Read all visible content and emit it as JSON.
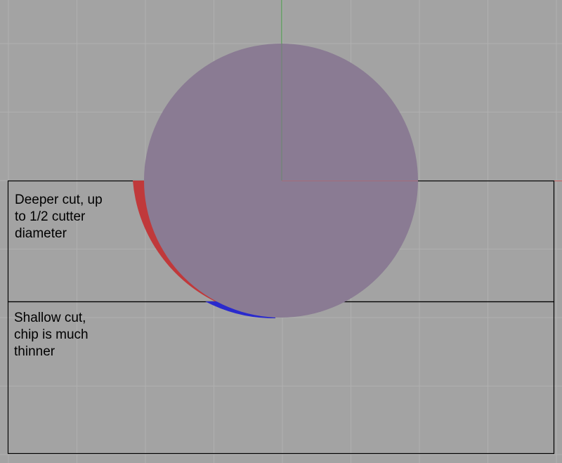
{
  "viewport": {
    "background": "#a3a3a3",
    "grid_color": "#b0b0b0",
    "y_axis_color": "#3f9a3f",
    "x_axis_color": "#c45c5c"
  },
  "cutter": {
    "color": "#8a7b93",
    "deep_cut_arc_color": "#c0393b",
    "shallow_cut_arc_color": "#2a2acd"
  },
  "regions": {
    "outline_color": "#000000"
  },
  "labels": {
    "deep_cut": "Deeper cut, up\nto 1/2 cutter\ndiameter",
    "shallow_cut": "Shallow cut,\nchip is much\nthinner"
  }
}
